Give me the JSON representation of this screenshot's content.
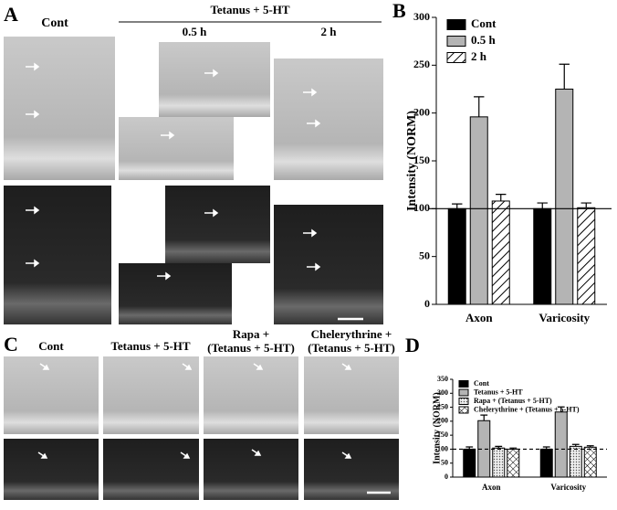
{
  "labels": {
    "panel_a": "A",
    "a_cont": "Cont",
    "a_treatment": "Tetanus + 5-HT",
    "a_time_1": "0.5 h",
    "a_time_2": "2 h",
    "panel_b": "B",
    "panel_c": "C",
    "c_cont": "Cont",
    "c_tetanus": "Tetanus + 5-HT",
    "c_rapa_1": "Rapa +",
    "c_rapa_2": "(Tetanus + 5-HT)",
    "c_chel_1": "Chelerythrine +",
    "c_chel_2": "(Tetanus + 5-HT)",
    "panel_d": "D"
  },
  "chart_data": [
    {
      "type": "bar",
      "y_label": "Intensity (NORM)",
      "categories": [
        "Axon",
        "Varicosity"
      ],
      "series": [
        {
          "name": "Cont",
          "color": "#000000",
          "values": [
            100,
            100
          ],
          "errors": [
            5,
            6
          ]
        },
        {
          "name": "0.5 h",
          "color": "#b4b4b4",
          "values": [
            196,
            225
          ],
          "errors": [
            21,
            26
          ]
        },
        {
          "name": "2 h",
          "color": "#ffffff",
          "pattern": "hatch",
          "values": [
            108,
            101
          ],
          "errors": [
            7,
            5
          ]
        }
      ],
      "ylim": [
        0,
        300
      ],
      "yticks": [
        0,
        50,
        100,
        150,
        200,
        250,
        300
      ],
      "reference_line": 100,
      "reference_style": "solid",
      "legend": "upper left"
    },
    {
      "type": "bar",
      "y_label": "Intensity (NORM)",
      "categories": [
        "Axon",
        "Varicosity"
      ],
      "series": [
        {
          "name": "Cont",
          "color": "#000000",
          "values": [
            100,
            100
          ],
          "errors": [
            8,
            8
          ]
        },
        {
          "name": "Tetanus + 5-HT",
          "color": "#b4b4b4",
          "values": [
            202,
            233
          ],
          "errors": [
            20,
            18
          ]
        },
        {
          "name": "Rapa + (Tetanus + 5-HT)",
          "color": "#ffffff",
          "pattern": "dots",
          "values": [
            104,
            110
          ],
          "errors": [
            6,
            7
          ]
        },
        {
          "name": "Chelerythrine + (Tetanus + 5-HT)",
          "color": "#ffffff",
          "pattern": "crosshatch",
          "values": [
            100,
            107
          ],
          "errors": [
            4,
            5
          ]
        }
      ],
      "ylim": [
        0,
        350
      ],
      "yticks": [
        0,
        50,
        100,
        150,
        200,
        250,
        300,
        350
      ],
      "reference_line": 100,
      "reference_style": "dashed",
      "legend": "upper left"
    }
  ]
}
